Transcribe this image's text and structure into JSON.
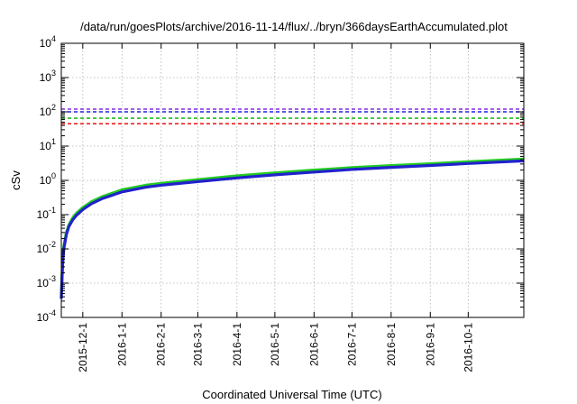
{
  "chart_data": {
    "type": "line",
    "title": "/data/run/goesPlots/archive/2016-11-14/flux/../bryn/366daysEarthAccumulated.plot",
    "xlabel": "Coordinated Universal Time (UTC)",
    "ylabel": "cSv",
    "y_scale": "log",
    "ylim": [
      0.0001,
      10000
    ],
    "xlim": [
      "2015-11-14",
      "2016-11-14"
    ],
    "grid": true,
    "x_ticks": [
      "2015-12-1",
      "2016-1-1",
      "2016-2-1",
      "2016-3-1",
      "2016-4-1",
      "2016-5-1",
      "2016-6-1",
      "2016-7-1",
      "2016-8-1",
      "2016-9-1",
      "2016-10-1"
    ],
    "y_ticks": [
      {
        "base": "10",
        "exp": "-4"
      },
      {
        "base": "10",
        "exp": "-3"
      },
      {
        "base": "10",
        "exp": "-2"
      },
      {
        "base": "10",
        "exp": "-1"
      },
      {
        "base": "10",
        "exp": "0"
      },
      {
        "base": "10",
        "exp": "1"
      },
      {
        "base": "10",
        "exp": "2"
      },
      {
        "base": "10",
        "exp": "3"
      },
      {
        "base": "10",
        "exp": "4"
      }
    ],
    "thresholds": [
      {
        "value": 120,
        "color": "#8a2be2"
      },
      {
        "value": 100,
        "color": "#2222dd"
      },
      {
        "value": 65,
        "color": "#22bb22"
      },
      {
        "value": 45,
        "color": "#ee2222"
      }
    ],
    "series": [
      {
        "color": "#22cc22",
        "x": [
          "2015-11-14",
          "2015-11-15",
          "2015-11-16",
          "2015-11-18",
          "2015-11-20",
          "2015-11-23",
          "2015-11-26",
          "2015-12-1",
          "2015-12-8",
          "2015-12-16",
          "2016-1-1",
          "2016-1-20",
          "2016-2-1",
          "2016-3-1",
          "2016-4-1",
          "2016-5-1",
          "2016-6-1",
          "2016-7-1",
          "2016-8-1",
          "2016-9-1",
          "2016-10-1",
          "2016-11-14"
        ],
        "y": [
          0.0004,
          0.004,
          0.012,
          0.03,
          0.05,
          0.08,
          0.11,
          0.16,
          0.24,
          0.33,
          0.53,
          0.72,
          0.82,
          1.05,
          1.35,
          1.65,
          2.0,
          2.35,
          2.7,
          3.05,
          3.5,
          4.2
        ]
      },
      {
        "color": "#2222cc",
        "x": [
          "2015-11-14",
          "2015-11-15",
          "2015-11-16",
          "2015-11-18",
          "2015-11-20",
          "2015-11-23",
          "2015-11-26",
          "2015-12-1",
          "2015-12-8",
          "2015-12-16",
          "2016-1-1",
          "2016-1-20",
          "2016-2-1",
          "2016-3-1",
          "2016-4-1",
          "2016-5-1",
          "2016-6-1",
          "2016-7-1",
          "2016-8-1",
          "2016-9-1",
          "2016-10-1",
          "2016-11-14"
        ],
        "y": [
          0.00035,
          0.0035,
          0.01,
          0.026,
          0.045,
          0.07,
          0.095,
          0.14,
          0.21,
          0.29,
          0.46,
          0.63,
          0.72,
          0.92,
          1.18,
          1.45,
          1.75,
          2.08,
          2.4,
          2.72,
          3.1,
          3.7
        ]
      }
    ]
  }
}
